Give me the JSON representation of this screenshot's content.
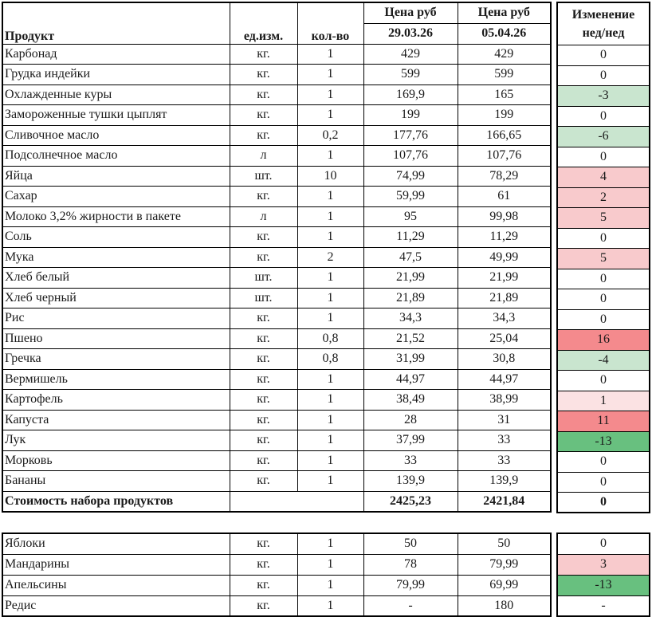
{
  "table": {
    "header": {
      "product": "Продукт",
      "unit": "ед.изм.",
      "qty": "кол-во",
      "price_label": "Цена руб",
      "date1": "29.03.26",
      "date2": "05.04.26",
      "change_line1": "Изменение",
      "change_line2": "нед/нед"
    },
    "rows": [
      {
        "product": "Карбонад",
        "unit": "кг.",
        "qty": "1",
        "price1": "429",
        "price2": "429",
        "change": "0",
        "change_bg": ""
      },
      {
        "product": "Грудка индейки",
        "unit": "кг.",
        "qty": "1",
        "price1": "599",
        "price2": "599",
        "change": "0",
        "change_bg": ""
      },
      {
        "product": "Охлажденные куры",
        "unit": "кг.",
        "qty": "1",
        "price1": "169,9",
        "price2": "165",
        "change": "-3",
        "change_bg": "#C9E5CF"
      },
      {
        "product": "Замороженные тушки цыплят",
        "unit": "кг.",
        "qty": "1",
        "price1": "199",
        "price2": "199",
        "change": "0",
        "change_bg": ""
      },
      {
        "product": "Сливочное масло",
        "unit": "кг.",
        "qty": "0,2",
        "price1": "177,76",
        "price2": "166,65",
        "change": "-6",
        "change_bg": "#C9E5CF"
      },
      {
        "product": "Подсолнечное масло",
        "unit": "л",
        "qty": "1",
        "price1": "107,76",
        "price2": "107,76",
        "change": "0",
        "change_bg": ""
      },
      {
        "product": "Яйца",
        "unit": "шт.",
        "qty": "10",
        "price1": "74,99",
        "price2": "78,29",
        "change": "4",
        "change_bg": "#F8CACC"
      },
      {
        "product": "Сахар",
        "unit": "кг.",
        "qty": "1",
        "price1": "59,99",
        "price2": "61",
        "change": "2",
        "change_bg": "#F8CACC"
      },
      {
        "product": "Молоко 3,2% жирности в пакете",
        "unit": "л",
        "qty": "1",
        "price1": "95",
        "price2": "99,98",
        "change": "5",
        "change_bg": "#F8CACC"
      },
      {
        "product": "Соль",
        "unit": "кг.",
        "qty": "1",
        "price1": "11,29",
        "price2": "11,29",
        "change": "0",
        "change_bg": ""
      },
      {
        "product": "Мука",
        "unit": "кг.",
        "qty": "2",
        "price1": "47,5",
        "price2": "49,99",
        "change": "5",
        "change_bg": "#F8CACC"
      },
      {
        "product": "Хлеб белый",
        "unit": "шт.",
        "qty": "1",
        "price1": "21,99",
        "price2": "21,99",
        "change": "0",
        "change_bg": ""
      },
      {
        "product": "Хлеб черный",
        "unit": "шт.",
        "qty": "1",
        "price1": "21,89",
        "price2": "21,89",
        "change": "0",
        "change_bg": ""
      },
      {
        "product": "Рис",
        "unit": "кг.",
        "qty": "1",
        "price1": "34,3",
        "price2": "34,3",
        "change": "0",
        "change_bg": ""
      },
      {
        "product": "Пшено",
        "unit": "кг.",
        "qty": "0,8",
        "price1": "21,52",
        "price2": "25,04",
        "change": "16",
        "change_bg": "#F48A8D"
      },
      {
        "product": "Гречка",
        "unit": "кг.",
        "qty": "0,8",
        "price1": "31,99",
        "price2": "30,8",
        "change": "-4",
        "change_bg": "#C9E5CF"
      },
      {
        "product": "Вермишель",
        "unit": "кг.",
        "qty": "1",
        "price1": "44,97",
        "price2": "44,97",
        "change": "0",
        "change_bg": ""
      },
      {
        "product": "Картофель",
        "unit": "кг.",
        "qty": "1",
        "price1": "38,49",
        "price2": "38,99",
        "change": "1",
        "change_bg": "#FBE2E3"
      },
      {
        "product": "Капуста",
        "unit": "кг.",
        "qty": "1",
        "price1": "28",
        "price2": "31",
        "change": "11",
        "change_bg": "#F48A8D"
      },
      {
        "product": "Лук",
        "unit": "кг.",
        "qty": "1",
        "price1": "37,99",
        "price2": "33",
        "change": "-13",
        "change_bg": "#68C07F"
      },
      {
        "product": "Морковь",
        "unit": "кг.",
        "qty": "1",
        "price1": "33",
        "price2": "33",
        "change": "0",
        "change_bg": ""
      },
      {
        "product": "Бананы",
        "unit": "кг.",
        "qty": "1",
        "price1": "139,9",
        "price2": "139,9",
        "change": "0",
        "change_bg": ""
      }
    ],
    "total": {
      "label": "Стоимость набора продуктов",
      "price1": "2425,23",
      "price2": "2421,84",
      "change": "0",
      "change_bg": ""
    },
    "extra_rows": [
      {
        "product": "Яблоки",
        "unit": "кг.",
        "qty": "1",
        "price1": "50",
        "price2": "50",
        "change": "0",
        "change_bg": ""
      },
      {
        "product": "Мандарины",
        "unit": "кг.",
        "qty": "1",
        "price1": "78",
        "price2": "79,99",
        "change": "3",
        "change_bg": "#F8CACC"
      },
      {
        "product": "Апельсины",
        "unit": "кг.",
        "qty": "1",
        "price1": "79,99",
        "price2": "69,99",
        "change": "-13",
        "change_bg": "#68C07F"
      },
      {
        "product": "Редис",
        "unit": "кг.",
        "qty": "1",
        "price1": "-",
        "price2": "180",
        "change": "-",
        "change_bg": ""
      }
    ]
  },
  "colors": {
    "decrease_strong": "#68C07F",
    "decrease_light": "#C9E5CF",
    "increase_strong": "#F48A8D",
    "increase_light": "#F8CACC",
    "increase_very_light": "#FBE2E3",
    "border": "#000000",
    "background": "#FFFFFF"
  }
}
